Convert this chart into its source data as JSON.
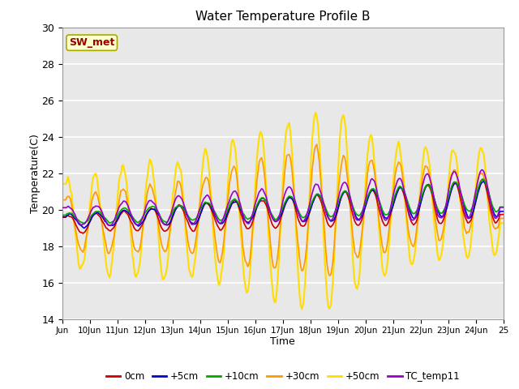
{
  "title": "Water Temperature Profile B",
  "xlabel": "Time",
  "ylabel": "Temperature(C)",
  "ylim": [
    14,
    30
  ],
  "yticks": [
    14,
    16,
    18,
    20,
    22,
    24,
    26,
    28,
    30
  ],
  "xtick_labels": [
    "Jun",
    "10Jun",
    "11Jun",
    "12Jun",
    "13Jun",
    "14Jun",
    "15Jun",
    "16Jun",
    "17Jun",
    "18Jun",
    "19Jun",
    "20Jun",
    "21Jun",
    "22Jun",
    "23Jun",
    "24Jun",
    "25"
  ],
  "bg_color": "#e8e8e8",
  "annotation_text": "SW_met",
  "annotation_bg": "#ffffcc",
  "annotation_border": "#cccc00",
  "annotation_text_color": "#990000",
  "legend_entries": [
    "0cm",
    "+5cm",
    "+10cm",
    "+30cm",
    "+50cm",
    "TC_temp11"
  ],
  "line_colors": [
    "#cc0000",
    "#0000cc",
    "#00aa00",
    "#ff9900",
    "#ffdd00",
    "#9900cc"
  ],
  "line_widths": [
    1.2,
    1.2,
    1.2,
    1.2,
    1.5,
    1.2
  ]
}
